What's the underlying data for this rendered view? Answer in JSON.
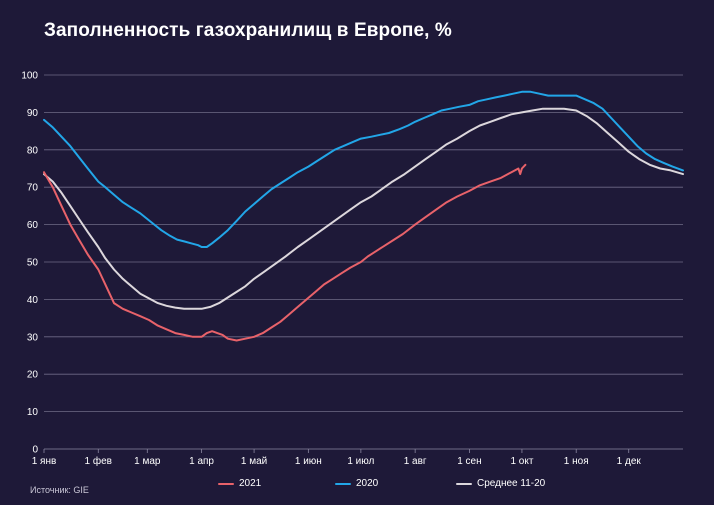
{
  "title": "Заполненность газохранилищ в Европе, %",
  "source": "Источник: GIE",
  "colors": {
    "background": "#1e1938",
    "grid": "#6e6a86",
    "s2021": "#e8626a",
    "s2020": "#22a6e8",
    "avg": "#dcd7dc"
  },
  "chart_data": {
    "type": "line",
    "title": "Заполненность газохранилищ в Европе, %",
    "xlabel": "",
    "ylabel": "",
    "ylim": [
      0,
      100
    ],
    "xlim": [
      0,
      365
    ],
    "y_ticks": [
      0,
      10,
      20,
      30,
      40,
      50,
      60,
      70,
      80,
      90,
      100
    ],
    "x_ticks": [
      {
        "day": 0,
        "label": "1 янв"
      },
      {
        "day": 31,
        "label": "1 фев"
      },
      {
        "day": 59,
        "label": "1 мар"
      },
      {
        "day": 90,
        "label": "1 апр"
      },
      {
        "day": 120,
        "label": "1 май"
      },
      {
        "day": 151,
        "label": "1 июн"
      },
      {
        "day": 181,
        "label": "1 июл"
      },
      {
        "day": 212,
        "label": "1 авг"
      },
      {
        "day": 243,
        "label": "1 сен"
      },
      {
        "day": 273,
        "label": "1 окт"
      },
      {
        "day": 304,
        "label": "1 ноя"
      },
      {
        "day": 334,
        "label": "1 дек"
      }
    ],
    "grid": true,
    "legend_position": "bottom",
    "series": [
      {
        "name": "2021",
        "color": "#e8626a",
        "x": [
          0,
          5,
          10,
          15,
          20,
          25,
          31,
          35,
          40,
          45,
          50,
          55,
          60,
          65,
          70,
          75,
          80,
          85,
          90,
          93,
          96,
          99,
          102,
          105,
          110,
          115,
          120,
          125,
          130,
          135,
          140,
          145,
          150,
          155,
          160,
          165,
          170,
          175,
          181,
          185,
          190,
          195,
          200,
          205,
          212,
          218,
          224,
          230,
          236,
          243,
          249,
          255,
          261,
          267,
          271,
          272,
          273,
          275
        ],
        "y": [
          74,
          70,
          65,
          60,
          56,
          52,
          48,
          44,
          39,
          37.5,
          36.5,
          35.5,
          34.5,
          33,
          32,
          31,
          30.5,
          30,
          30,
          31,
          31.5,
          31,
          30.5,
          29.5,
          29,
          29.5,
          30,
          31,
          32.5,
          34,
          36,
          38,
          40,
          42,
          44,
          45.5,
          47,
          48.5,
          50,
          51.5,
          53,
          54.5,
          56,
          57.5,
          60,
          62,
          64,
          66,
          67.5,
          69,
          70.5,
          71.5,
          72.5,
          74,
          75,
          73.5,
          75,
          76
        ]
      },
      {
        "name": "2020",
        "color": "#22a6e8",
        "x": [
          0,
          5,
          10,
          15,
          20,
          25,
          31,
          35,
          40,
          45,
          50,
          55,
          59,
          63,
          67,
          72,
          76,
          80,
          84,
          88,
          90,
          93,
          96,
          100,
          105,
          110,
          115,
          120,
          125,
          130,
          135,
          140,
          145,
          151,
          156,
          161,
          166,
          171,
          176,
          181,
          187,
          192,
          197,
          203,
          208,
          212,
          217,
          222,
          227,
          232,
          237,
          243,
          248,
          253,
          258,
          263,
          268,
          273,
          278,
          283,
          288,
          293,
          298,
          304,
          309,
          314,
          319,
          324,
          329,
          334,
          339,
          344,
          349,
          354,
          359,
          365
        ],
        "y": [
          88,
          86,
          83.5,
          81,
          78,
          75,
          71.5,
          70,
          68,
          66,
          64.5,
          63,
          61.5,
          60,
          58.5,
          57,
          56,
          55.5,
          55,
          54.5,
          54,
          54,
          55,
          56.5,
          58.5,
          61,
          63.5,
          65.5,
          67.5,
          69.5,
          71,
          72.5,
          74,
          75.5,
          77,
          78.5,
          80,
          81,
          82,
          83,
          83.5,
          84,
          84.5,
          85.5,
          86.5,
          87.5,
          88.5,
          89.5,
          90.5,
          91,
          91.5,
          92,
          93,
          93.5,
          94,
          94.5,
          95,
          95.5,
          95.5,
          95,
          94.5,
          94.5,
          94.5,
          94.5,
          93.5,
          92.5,
          91,
          88.5,
          86,
          83.5,
          81,
          79,
          77.5,
          76.5,
          75.5,
          74.5
        ]
      },
      {
        "name": "Среднее 11-20",
        "color": "#dcd7dc",
        "x": [
          0,
          5,
          10,
          15,
          20,
          25,
          31,
          35,
          40,
          45,
          50,
          55,
          59,
          65,
          70,
          75,
          80,
          85,
          90,
          95,
          100,
          105,
          110,
          115,
          120,
          126,
          132,
          138,
          145,
          151,
          157,
          163,
          169,
          175,
          181,
          187,
          193,
          199,
          206,
          212,
          218,
          224,
          230,
          236,
          243,
          249,
          255,
          261,
          267,
          273,
          279,
          285,
          291,
          297,
          304,
          310,
          316,
          322,
          328,
          334,
          340,
          346,
          352,
          358,
          365
        ],
        "y": [
          73.5,
          71.5,
          68.5,
          65,
          61.5,
          58,
          54,
          51,
          48,
          45.5,
          43.5,
          41.5,
          40.5,
          39,
          38.3,
          37.8,
          37.5,
          37.5,
          37.5,
          38,
          39,
          40.5,
          42,
          43.5,
          45.5,
          47.5,
          49.5,
          51.5,
          54,
          56,
          58,
          60,
          62,
          64,
          66,
          67.5,
          69.5,
          71.5,
          73.5,
          75.5,
          77.5,
          79.5,
          81.5,
          83,
          85,
          86.5,
          87.5,
          88.5,
          89.5,
          90,
          90.5,
          91,
          91,
          91,
          90.5,
          89,
          87,
          84.5,
          82,
          79.5,
          77.5,
          76,
          75,
          74.5,
          73.5
        ]
      }
    ]
  }
}
